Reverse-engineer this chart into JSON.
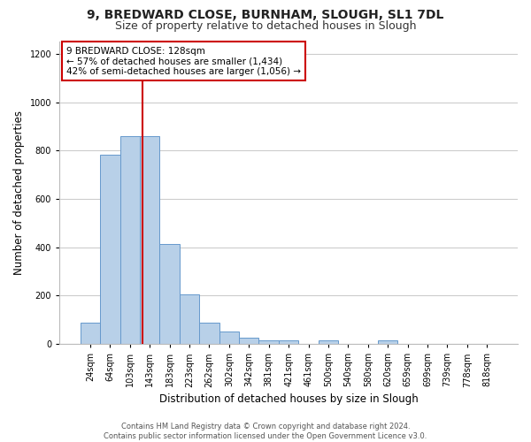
{
  "title1": "9, BREDWARD CLOSE, BURNHAM, SLOUGH, SL1 7DL",
  "title2": "Size of property relative to detached houses in Slough",
  "xlabel": "Distribution of detached houses by size in Slough",
  "ylabel": "Number of detached properties",
  "categories": [
    "24sqm",
    "64sqm",
    "103sqm",
    "143sqm",
    "183sqm",
    "223sqm",
    "262sqm",
    "302sqm",
    "342sqm",
    "381sqm",
    "421sqm",
    "461sqm",
    "500sqm",
    "540sqm",
    "580sqm",
    "620sqm",
    "659sqm",
    "699sqm",
    "739sqm",
    "778sqm",
    "818sqm"
  ],
  "values": [
    90,
    785,
    860,
    860,
    415,
    205,
    90,
    50,
    25,
    15,
    15,
    0,
    15,
    0,
    0,
    15,
    0,
    0,
    0,
    0,
    0
  ],
  "bar_color": "#b8d0e8",
  "bar_edge_color": "#6699cc",
  "property_line_color": "#cc0000",
  "annotation_text": "9 BREDWARD CLOSE: 128sqm\n← 57% of detached houses are smaller (1,434)\n42% of semi-detached houses are larger (1,056) →",
  "ylim": [
    0,
    1250
  ],
  "yticks": [
    0,
    200,
    400,
    600,
    800,
    1000,
    1200
  ],
  "grid_color": "#cccccc",
  "background_color": "#ffffff",
  "footer_text": "Contains HM Land Registry data © Crown copyright and database right 2024.\nContains public sector information licensed under the Open Government Licence v3.0.",
  "title1_fontsize": 10,
  "title2_fontsize": 9,
  "xlabel_fontsize": 8.5,
  "ylabel_fontsize": 8.5,
  "annotation_fontsize": 7.5,
  "tick_fontsize": 7,
  "footer_fontsize": 6
}
